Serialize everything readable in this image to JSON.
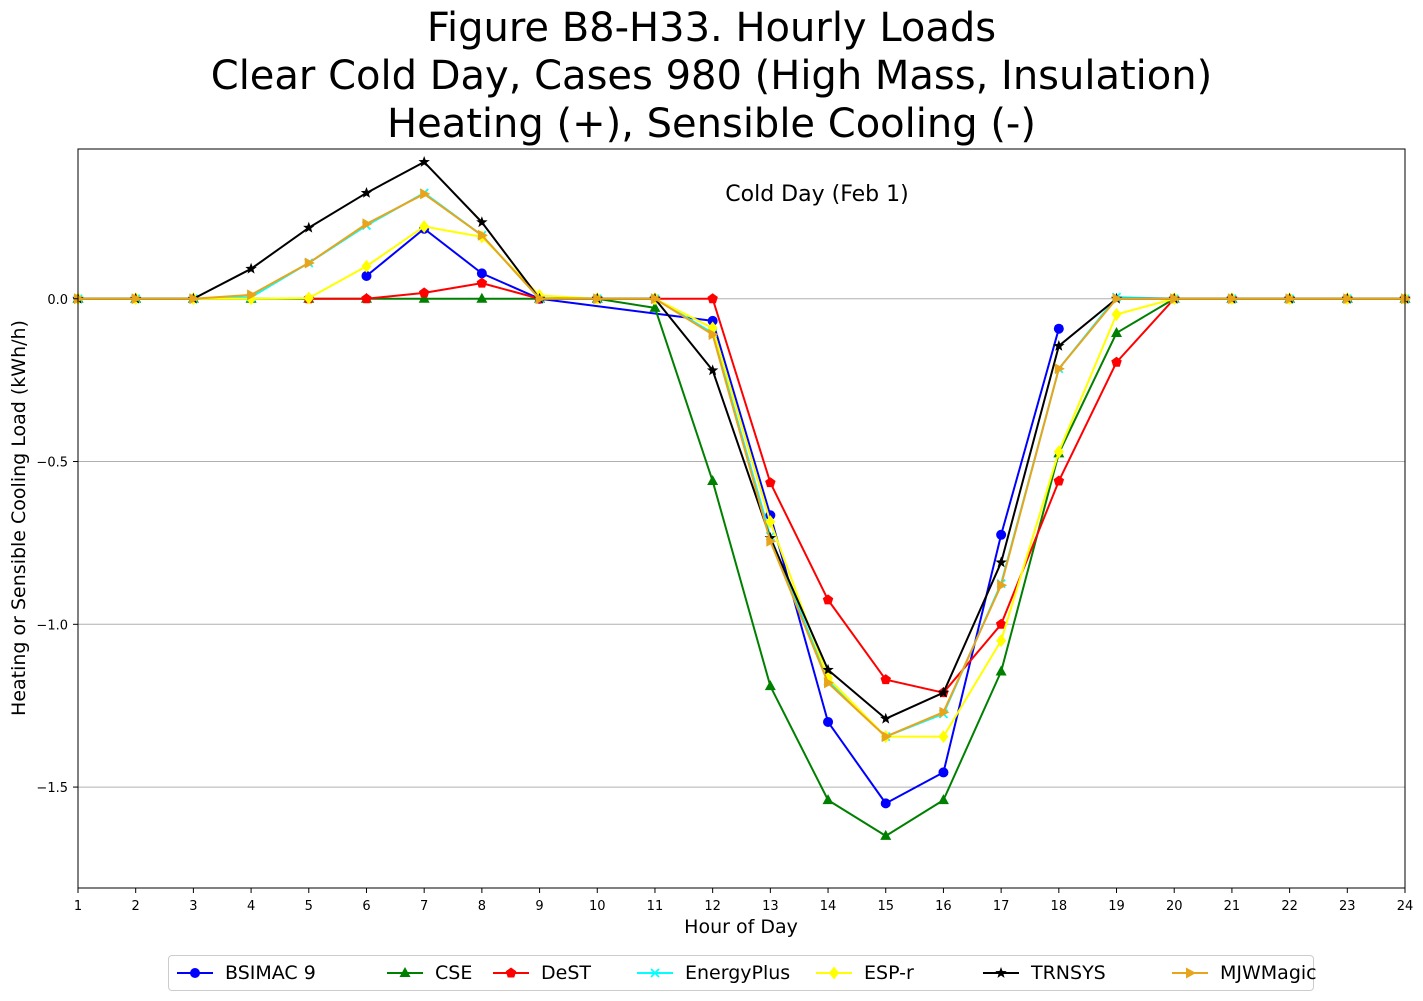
{
  "title": {
    "line1": "Figure B8-H33. Hourly Loads",
    "line2": "Clear Cold Day, Cases 980 (High Mass, Insulation)",
    "line3": "Heating (+), Sensible Cooling (-)"
  },
  "chart_data": {
    "type": "line",
    "annotation": "Cold Day (Feb 1)",
    "xlabel": "Hour of Day",
    "ylabel": "Heating or Sensible Cooling Load (kWh/h)",
    "xlim": [
      1,
      24
    ],
    "ylim": [
      -1.81,
      0.46
    ],
    "x_ticks": [
      1,
      2,
      3,
      4,
      5,
      6,
      7,
      8,
      9,
      10,
      11,
      12,
      13,
      14,
      15,
      16,
      17,
      18,
      19,
      20,
      21,
      22,
      23,
      24
    ],
    "y_ticks": [
      0.0,
      -0.5,
      -1.0,
      -1.5
    ],
    "y_tick_labels": [
      "0.0",
      "−0.5",
      "−1.0",
      "−1.5"
    ],
    "grid": "horizontal",
    "legend_position": "bottom",
    "series": [
      {
        "name": "BSIMAC 9",
        "color": "#0000ff",
        "marker": "circle",
        "points": [
          [
            6,
            0.07
          ],
          [
            7,
            0.215
          ],
          [
            8,
            0.078
          ],
          [
            9,
            0
          ],
          [
            12,
            -0.068
          ],
          [
            13,
            -0.665
          ],
          [
            14,
            -1.3
          ],
          [
            15,
            -1.55
          ],
          [
            16,
            -1.455
          ],
          [
            17,
            -0.725
          ],
          [
            18,
            -0.092
          ]
        ]
      },
      {
        "name": "CSE",
        "color": "#008000",
        "marker": "triangle",
        "points": [
          [
            1,
            0
          ],
          [
            2,
            0
          ],
          [
            3,
            0
          ],
          [
            4,
            0
          ],
          [
            5,
            0
          ],
          [
            6,
            0
          ],
          [
            7,
            0
          ],
          [
            8,
            0
          ],
          [
            9,
            0
          ],
          [
            10,
            0
          ],
          [
            11,
            -0.028
          ],
          [
            12,
            -0.56
          ],
          [
            13,
            -1.19
          ],
          [
            14,
            -1.54
          ],
          [
            15,
            -1.65
          ],
          [
            16,
            -1.54
          ],
          [
            17,
            -1.145
          ],
          [
            18,
            -0.475
          ],
          [
            19,
            -0.105
          ],
          [
            20,
            0
          ],
          [
            21,
            0
          ],
          [
            22,
            0
          ],
          [
            23,
            0
          ],
          [
            24,
            0
          ]
        ]
      },
      {
        "name": "DeST",
        "color": "#ff0000",
        "marker": "pentagon",
        "points": [
          [
            5,
            0
          ],
          [
            6,
            0
          ],
          [
            7,
            0.018
          ],
          [
            8,
            0.048
          ],
          [
            9,
            0
          ],
          [
            10,
            0
          ],
          [
            11,
            0
          ],
          [
            12,
            0
          ],
          [
            13,
            -0.565
          ],
          [
            14,
            -0.925
          ],
          [
            15,
            -1.17
          ],
          [
            16,
            -1.21
          ],
          [
            17,
            -1.0
          ],
          [
            18,
            -0.56
          ],
          [
            19,
            -0.195
          ],
          [
            20,
            0
          ],
          [
            21,
            0
          ],
          [
            22,
            0
          ],
          [
            23,
            0
          ],
          [
            24,
            0
          ]
        ]
      },
      {
        "name": "EnergyPlus",
        "color": "#00ffff",
        "marker": "x",
        "points": [
          [
            1,
            0
          ],
          [
            2,
            0
          ],
          [
            3,
            0
          ],
          [
            4,
            0.005
          ],
          [
            5,
            0.11
          ],
          [
            6,
            0.225
          ],
          [
            7,
            0.325
          ],
          [
            8,
            0.195
          ],
          [
            9,
            0
          ],
          [
            10,
            0
          ],
          [
            11,
            0
          ],
          [
            12,
            -0.105
          ],
          [
            13,
            -0.73
          ],
          [
            14,
            -1.175
          ],
          [
            15,
            -1.345
          ],
          [
            16,
            -1.275
          ],
          [
            17,
            -0.875
          ],
          [
            18,
            -0.215
          ],
          [
            19,
            0.005
          ],
          [
            20,
            0
          ],
          [
            21,
            0
          ],
          [
            22,
            0
          ],
          [
            23,
            0
          ],
          [
            24,
            0
          ]
        ]
      },
      {
        "name": "ESP-r",
        "color": "#ffff00",
        "marker": "diamond",
        "points": [
          [
            1,
            0
          ],
          [
            2,
            0
          ],
          [
            3,
            0
          ],
          [
            4,
            0
          ],
          [
            5,
            0.002
          ],
          [
            6,
            0.1
          ],
          [
            7,
            0.222
          ],
          [
            8,
            0.19
          ],
          [
            9,
            0.01
          ],
          [
            10,
            0
          ],
          [
            11,
            0
          ],
          [
            12,
            -0.09
          ],
          [
            13,
            -0.685
          ],
          [
            14,
            -1.165
          ],
          [
            15,
            -1.345
          ],
          [
            16,
            -1.345
          ],
          [
            17,
            -1.05
          ],
          [
            18,
            -0.47
          ],
          [
            19,
            -0.048
          ],
          [
            20,
            0
          ],
          [
            21,
            0
          ],
          [
            22,
            0
          ],
          [
            23,
            0
          ],
          [
            24,
            0
          ]
        ]
      },
      {
        "name": "TRNSYS",
        "color": "#000000",
        "marker": "star",
        "points": [
          [
            1,
            0
          ],
          [
            2,
            0
          ],
          [
            3,
            0
          ],
          [
            4,
            0.092
          ],
          [
            5,
            0.218
          ],
          [
            6,
            0.325
          ],
          [
            7,
            0.42
          ],
          [
            8,
            0.235
          ],
          [
            9,
            0
          ],
          [
            10,
            0
          ],
          [
            11,
            0
          ],
          [
            12,
            -0.22
          ],
          [
            13,
            -0.735
          ],
          [
            14,
            -1.14
          ],
          [
            15,
            -1.29
          ],
          [
            16,
            -1.21
          ],
          [
            17,
            -0.81
          ],
          [
            18,
            -0.145
          ],
          [
            19,
            0
          ],
          [
            20,
            0
          ],
          [
            21,
            0
          ],
          [
            22,
            0
          ],
          [
            23,
            0
          ],
          [
            24,
            0
          ]
        ]
      },
      {
        "name": "MJWMagic",
        "color": "#e8a41a",
        "marker": "triangle-right",
        "points": [
          [
            1,
            0
          ],
          [
            2,
            0
          ],
          [
            3,
            0
          ],
          [
            4,
            0.012
          ],
          [
            5,
            0.11
          ],
          [
            6,
            0.23
          ],
          [
            7,
            0.322
          ],
          [
            8,
            0.195
          ],
          [
            9,
            0
          ],
          [
            10,
            0
          ],
          [
            11,
            0
          ],
          [
            12,
            -0.11
          ],
          [
            13,
            -0.745
          ],
          [
            14,
            -1.18
          ],
          [
            15,
            -1.345
          ],
          [
            16,
            -1.27
          ],
          [
            17,
            -0.88
          ],
          [
            18,
            -0.215
          ],
          [
            19,
            0
          ],
          [
            20,
            0
          ],
          [
            21,
            0
          ],
          [
            22,
            0
          ],
          [
            23,
            0
          ],
          [
            24,
            0
          ]
        ]
      }
    ]
  }
}
